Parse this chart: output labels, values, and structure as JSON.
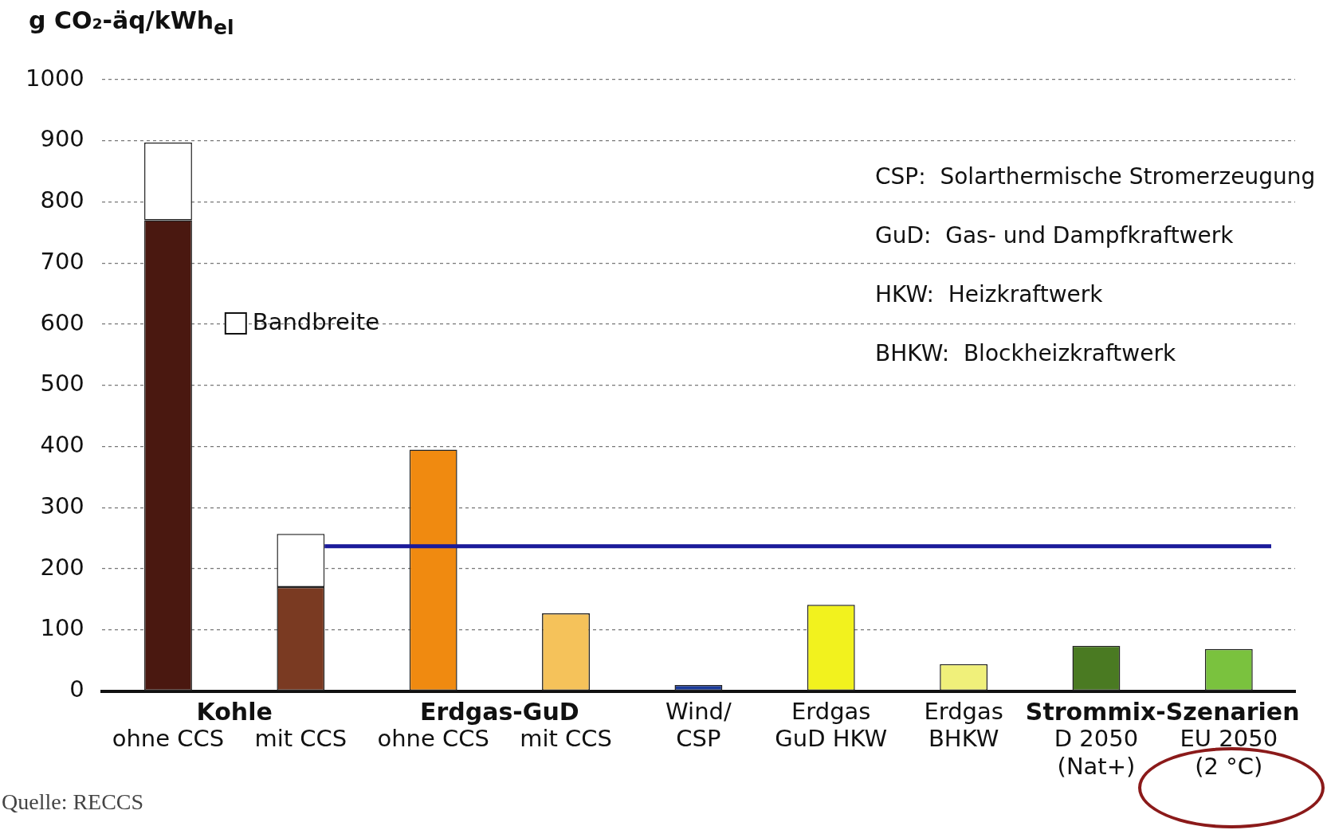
{
  "chart_data": {
    "type": "bar",
    "ylabel": "g CO₂-äq/kWh$_{el}$",
    "categories": [
      "ohne CCS",
      "mit CCS",
      "ohne CCS",
      "mit CCS",
      "Wind/\nCSP",
      "Erdgas\nGuD HKW",
      "Erdgas\nBHKW",
      "D 2050\n(Nat+)",
      "EU 2050\n(2 °C)"
    ],
    "stacked": true,
    "series": [
      {
        "colors": [
          "#4a1810",
          "#7a3a22",
          "#f08a10",
          "#f5c25a",
          "#1a3a9a",
          "#f2f21e",
          "#f0f07a",
          "#4a7a22",
          "#7ac23e"
        ],
        "values": [
          770,
          170,
          395,
          127,
          10,
          141,
          44,
          74,
          69
        ]
      },
      {
        "name": "Bandbreite",
        "color": "#ffffff",
        "values": [
          127,
          87,
          null,
          null,
          null,
          null,
          null,
          null,
          null
        ]
      }
    ],
    "ylim": [
      0,
      1000
    ],
    "yticks": [
      0,
      100,
      200,
      300,
      400,
      500,
      600,
      700,
      800,
      900,
      1000
    ],
    "grid": "y",
    "legend": "left",
    "ref_lines": [
      {
        "axis": "y",
        "value": 237,
        "color": "#1a1a9a"
      }
    ],
    "annotations": [
      "Kohle",
      "Erdgas-GuD",
      "Strommix-Szenarien",
      "CSP:  Solarthermische Stromerzeugung",
      "GuD:  Gas- und Dampfkraftwerk",
      "HKW:  Heizkraftwerk",
      "BHKW:  Blockheizkraftwerk",
      "Quelle: RECCS"
    ]
  }
}
